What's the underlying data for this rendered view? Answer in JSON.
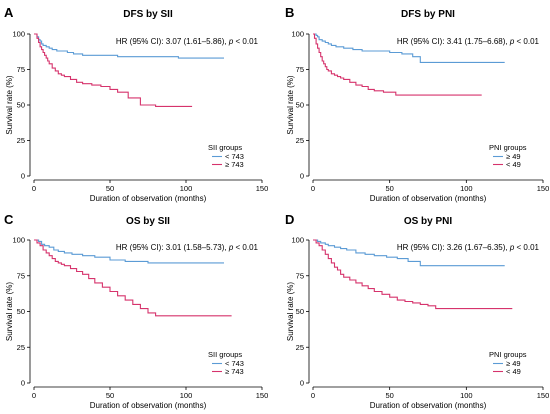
{
  "colors": {
    "low": "#5b9bd5",
    "high": "#d6336c"
  },
  "chart_data": [
    {
      "type": "line",
      "letter": "A",
      "title": "DFS by SII",
      "xlabel": "Duration of observation (months)",
      "ylabel": "Survival rate (%)",
      "xlim": [
        0,
        150
      ],
      "ylim": [
        0,
        100
      ],
      "xticks": [
        "0",
        "50",
        "100",
        "150"
      ],
      "yticks": [
        "0",
        "25",
        "50",
        "75",
        "100"
      ],
      "annotation": {
        "prefix": "HR (95% CI): 3.07 (1.61–5.86), ",
        "p": "p",
        "suffix": " < 0.01"
      },
      "legend": {
        "title": "SII groups",
        "position": "bottom-right"
      },
      "series": [
        {
          "name": "< 743",
          "color_key": "low",
          "x": [
            0,
            2,
            3,
            4,
            5,
            6,
            8,
            10,
            12,
            15,
            18,
            22,
            26,
            32,
            40,
            55,
            70,
            95,
            125
          ],
          "y": [
            100,
            98,
            96,
            95,
            93,
            92,
            91,
            90,
            89,
            88,
            88,
            87,
            86,
            85,
            85,
            84,
            84,
            83,
            83
          ]
        },
        {
          "name": "≥ 743",
          "color_key": "high",
          "x": [
            0,
            2,
            3,
            4,
            5,
            6,
            7,
            8,
            9,
            10,
            12,
            14,
            16,
            18,
            20,
            24,
            28,
            32,
            38,
            44,
            50,
            55,
            62,
            70,
            80,
            104
          ],
          "y": [
            100,
            97,
            94,
            91,
            89,
            87,
            85,
            83,
            81,
            79,
            76,
            74,
            72,
            71,
            70,
            68,
            66,
            65,
            64,
            63,
            61,
            59,
            55,
            50,
            49,
            49
          ]
        }
      ]
    },
    {
      "type": "line",
      "letter": "B",
      "title": "DFS by PNI",
      "xlabel": "Duration of observation (months)",
      "ylabel": "Survival rate (%)",
      "xlim": [
        0,
        150
      ],
      "ylim": [
        0,
        100
      ],
      "xticks": [
        "0",
        "50",
        "100",
        "150"
      ],
      "yticks": [
        "0",
        "25",
        "50",
        "75",
        "100"
      ],
      "annotation": {
        "prefix": "HR (95% CI): 3.41 (1.75–6.68), ",
        "p": "p",
        "suffix": " < 0.01"
      },
      "legend": {
        "title": "PNI groups",
        "position": "bottom-right"
      },
      "series": [
        {
          "name": "≥ 49",
          "color_key": "low",
          "x": [
            0,
            2,
            3,
            4,
            6,
            8,
            10,
            12,
            15,
            20,
            26,
            32,
            40,
            50,
            58,
            65,
            70,
            125
          ],
          "y": [
            100,
            99,
            98,
            96,
            95,
            94,
            93,
            92,
            91,
            90,
            89,
            88,
            88,
            87,
            86,
            84,
            80,
            80
          ]
        },
        {
          "name": "< 49",
          "color_key": "high",
          "x": [
            0,
            1,
            2,
            3,
            4,
            5,
            6,
            7,
            8,
            9,
            10,
            12,
            14,
            16,
            18,
            20,
            24,
            28,
            32,
            36,
            40,
            46,
            54,
            65,
            80,
            110
          ],
          "y": [
            100,
            97,
            93,
            90,
            87,
            84,
            81,
            79,
            77,
            75,
            74,
            72,
            71,
            70,
            69,
            68,
            66,
            64,
            63,
            61,
            60,
            59,
            57,
            57,
            57,
            57
          ]
        }
      ]
    },
    {
      "type": "line",
      "letter": "C",
      "title": "OS by SII",
      "xlabel": "Duration of observation (months)",
      "ylabel": "Survival rate (%)",
      "xlim": [
        0,
        150
      ],
      "ylim": [
        0,
        100
      ],
      "xticks": [
        "0",
        "50",
        "100",
        "150"
      ],
      "yticks": [
        "0",
        "25",
        "50",
        "75",
        "100"
      ],
      "annotation": {
        "prefix": "HR (95% CI): 3.01 (1.58–5.73), ",
        "p": "p",
        "suffix": " < 0.01"
      },
      "legend": {
        "title": "SII groups",
        "position": "bottom-right"
      },
      "series": [
        {
          "name": "< 743",
          "color_key": "low",
          "x": [
            0,
            3,
            5,
            7,
            10,
            13,
            16,
            20,
            25,
            32,
            40,
            50,
            60,
            75,
            95,
            125
          ],
          "y": [
            100,
            99,
            97,
            96,
            95,
            93,
            92,
            91,
            90,
            89,
            88,
            86,
            85,
            84,
            84,
            84
          ]
        },
        {
          "name": "≥ 743",
          "color_key": "high",
          "x": [
            0,
            2,
            4,
            6,
            8,
            10,
            12,
            14,
            16,
            18,
            20,
            24,
            28,
            32,
            36,
            40,
            45,
            50,
            55,
            60,
            65,
            70,
            75,
            80,
            130
          ],
          "y": [
            100,
            98,
            96,
            93,
            91,
            89,
            87,
            85,
            84,
            83,
            82,
            80,
            78,
            76,
            73,
            70,
            67,
            64,
            61,
            58,
            55,
            52,
            49,
            47,
            47
          ]
        }
      ]
    },
    {
      "type": "line",
      "letter": "D",
      "title": "OS by PNI",
      "xlabel": "Duration of observation (months)",
      "ylabel": "Survival rate (%)",
      "xlim": [
        0,
        150
      ],
      "ylim": [
        0,
        100
      ],
      "xticks": [
        "0",
        "50",
        "100",
        "150"
      ],
      "yticks": [
        "0",
        "25",
        "50",
        "75",
        "100"
      ],
      "annotation": {
        "prefix": "HR (95% CI): 3.26 (1.67–6.35), ",
        "p": "p",
        "suffix": " < 0.01"
      },
      "legend": {
        "title": "PNI groups",
        "position": "bottom-right"
      },
      "series": [
        {
          "name": "≥ 49",
          "color_key": "low",
          "x": [
            0,
            3,
            5,
            8,
            10,
            14,
            18,
            22,
            28,
            34,
            40,
            48,
            55,
            62,
            70,
            125
          ],
          "y": [
            100,
            99,
            98,
            97,
            96,
            95,
            94,
            93,
            91,
            90,
            89,
            88,
            87,
            85,
            82,
            82
          ]
        },
        {
          "name": "< 49",
          "color_key": "high",
          "x": [
            0,
            2,
            4,
            6,
            8,
            10,
            12,
            14,
            16,
            18,
            20,
            24,
            28,
            32,
            36,
            40,
            45,
            50,
            55,
            60,
            65,
            70,
            75,
            80,
            130
          ],
          "y": [
            100,
            98,
            96,
            93,
            90,
            87,
            84,
            81,
            79,
            76,
            74,
            72,
            70,
            68,
            66,
            64,
            62,
            60,
            58,
            57,
            56,
            55,
            54,
            52,
            52
          ]
        }
      ]
    }
  ]
}
